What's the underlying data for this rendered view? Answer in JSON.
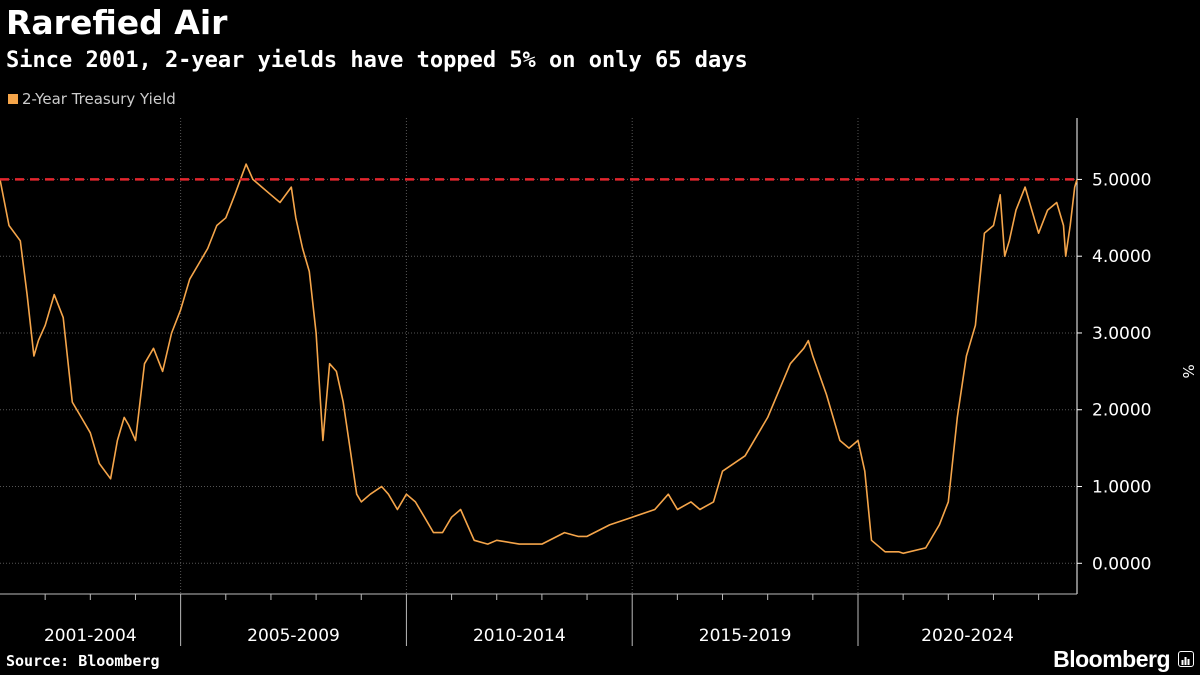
{
  "header": {
    "title": "Rarefied Air",
    "subtitle": "Since 2001, 2-year yields have topped 5% on only 65 days"
  },
  "footer": {
    "source": "Source: Bloomberg",
    "brand": "Bloomberg",
    "brand_icon": "chart-bars-icon"
  },
  "colors": {
    "background": "#000000",
    "series": "#F5A54A",
    "threshold": "#E3262E",
    "grid": "#555555"
  },
  "chart_data": {
    "type": "line",
    "title": "Rarefied Air",
    "subtitle": "Since 2001, 2-year yields have topped 5% on only 65 days",
    "ylabel": "%",
    "ylim": [
      -0.4,
      5.8
    ],
    "yticks": [
      0,
      1,
      2,
      3,
      4,
      5
    ],
    "ytick_labels": [
      "0.0000",
      "1.0000",
      "2.0000",
      "3.0000",
      "4.0000",
      "5.0000"
    ],
    "xlim": [
      2001.0,
      2024.85
    ],
    "x_categories": [
      "2001-2004",
      "2005-2009",
      "2010-2014",
      "2015-2019",
      "2020-2024"
    ],
    "x_category_bounds": [
      [
        2001.0,
        2005.0
      ],
      [
        2005.0,
        2010.0
      ],
      [
        2010.0,
        2015.0
      ],
      [
        2015.0,
        2020.0
      ],
      [
        2020.0,
        2024.85
      ]
    ],
    "x_minor_ticks": [
      2002,
      2003,
      2004,
      2006,
      2007,
      2008,
      2009,
      2011,
      2012,
      2013,
      2014,
      2016,
      2017,
      2018,
      2019,
      2021,
      2022,
      2023,
      2024
    ],
    "gridlines": true,
    "legend": "top-left",
    "threshold": {
      "value": 5.0,
      "style": "dashed",
      "color": "#E3262E"
    },
    "series": [
      {
        "name": "2-Year Treasury Yield",
        "color": "#F5A54A",
        "x": [
          2001.0,
          2001.2,
          2001.45,
          2001.6,
          2001.75,
          2001.85,
          2002.0,
          2002.2,
          2002.4,
          2002.6,
          2002.8,
          2003.0,
          2003.2,
          2003.45,
          2003.6,
          2003.75,
          2003.85,
          2004.0,
          2004.2,
          2004.4,
          2004.6,
          2004.8,
          2005.0,
          2005.2,
          2005.4,
          2005.6,
          2005.8,
          2006.0,
          2006.2,
          2006.45,
          2006.6,
          2006.8,
          2007.0,
          2007.2,
          2007.45,
          2007.55,
          2007.7,
          2007.85,
          2008.0,
          2008.15,
          2008.3,
          2008.45,
          2008.6,
          2008.75,
          2008.9,
          2009.0,
          2009.2,
          2009.45,
          2009.6,
          2009.8,
          2010.0,
          2010.2,
          2010.4,
          2010.6,
          2010.8,
          2011.0,
          2011.2,
          2011.5,
          2011.8,
          2012.0,
          2012.5,
          2013.0,
          2013.5,
          2013.8,
          2014.0,
          2014.5,
          2015.0,
          2015.5,
          2015.8,
          2016.0,
          2016.3,
          2016.5,
          2016.8,
          2017.0,
          2017.5,
          2018.0,
          2018.5,
          2018.8,
          2018.9,
          2019.0,
          2019.3,
          2019.6,
          2019.8,
          2020.0,
          2020.15,
          2020.3,
          2020.6,
          2020.9,
          2021.0,
          2021.5,
          2021.8,
          2022.0,
          2022.2,
          2022.4,
          2022.6,
          2022.8,
          2023.0,
          2023.15,
          2023.25,
          2023.35,
          2023.5,
          2023.7,
          2023.85,
          2024.0,
          2024.2,
          2024.4,
          2024.55,
          2024.6,
          2024.7,
          2024.8,
          2024.85
        ],
        "y": [
          5.0,
          4.4,
          4.2,
          3.5,
          2.7,
          2.9,
          3.1,
          3.5,
          3.2,
          2.1,
          1.9,
          1.7,
          1.3,
          1.1,
          1.6,
          1.9,
          1.8,
          1.6,
          2.6,
          2.8,
          2.5,
          3.0,
          3.3,
          3.7,
          3.9,
          4.1,
          4.4,
          4.5,
          4.8,
          5.2,
          5.0,
          4.9,
          4.8,
          4.7,
          4.9,
          4.5,
          4.1,
          3.8,
          3.0,
          1.6,
          2.6,
          2.5,
          2.1,
          1.5,
          0.9,
          0.8,
          0.9,
          1.0,
          0.9,
          0.7,
          0.9,
          0.8,
          0.6,
          0.4,
          0.4,
          0.6,
          0.7,
          0.3,
          0.25,
          0.3,
          0.25,
          0.25,
          0.4,
          0.35,
          0.35,
          0.5,
          0.6,
          0.7,
          0.9,
          0.7,
          0.8,
          0.7,
          0.8,
          1.2,
          1.4,
          1.9,
          2.6,
          2.8,
          2.9,
          2.7,
          2.2,
          1.6,
          1.5,
          1.6,
          1.2,
          0.3,
          0.15,
          0.15,
          0.13,
          0.2,
          0.5,
          0.8,
          1.9,
          2.7,
          3.1,
          4.3,
          4.4,
          4.8,
          4.0,
          4.2,
          4.6,
          4.9,
          4.6,
          4.3,
          4.6,
          4.7,
          4.4,
          4.0,
          4.4,
          4.9,
          5.0
        ]
      }
    ]
  }
}
